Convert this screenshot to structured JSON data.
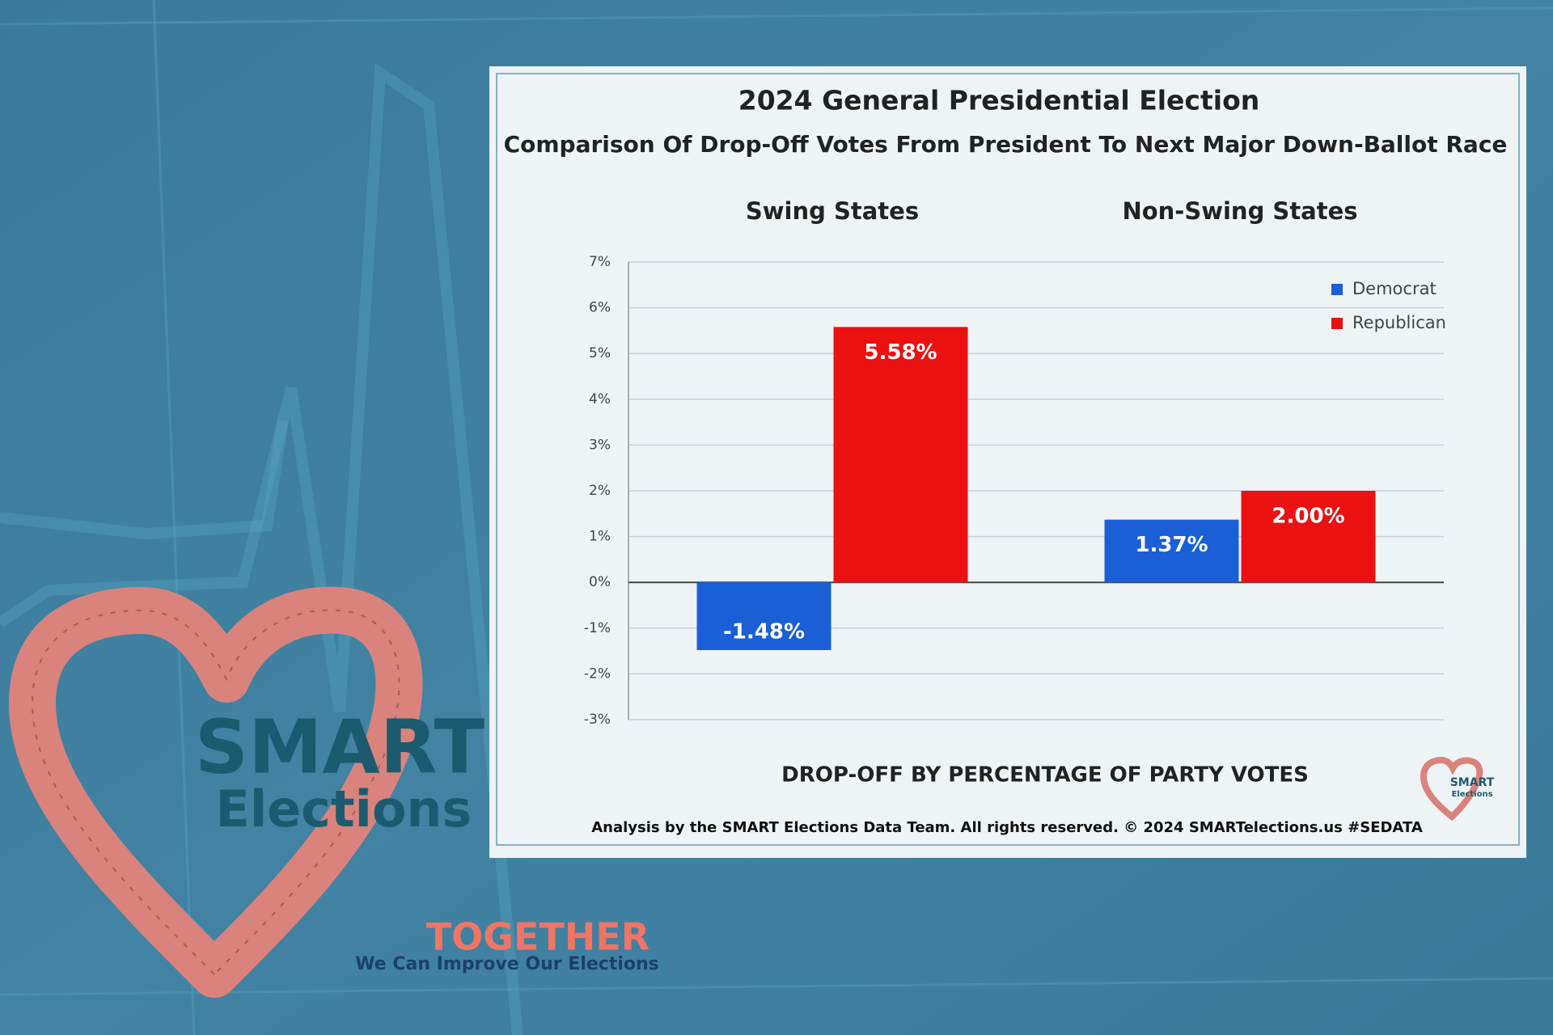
{
  "chart_data": {
    "type": "bar",
    "title": "2024 General Presidential Election",
    "subtitle": "Comparison Of Drop-Off Votes From President To Next Major Down-Ballot Race",
    "categories": [
      "Swing States",
      "Non-Swing States"
    ],
    "series": [
      {
        "name": "Democrat",
        "color": "#1a5fd6",
        "values": [
          -1.48,
          1.37
        ],
        "value_labels": [
          "-1.48%",
          "1.37%"
        ]
      },
      {
        "name": "Republican",
        "color": "#ec1111",
        "values": [
          5.58,
          2.0
        ],
        "value_labels": [
          "5.58%",
          "2.00%"
        ]
      }
    ],
    "ylim": [
      -3,
      7
    ],
    "yticks": [
      {
        "value": -3,
        "label": "-3%"
      },
      {
        "value": -2,
        "label": "-2%"
      },
      {
        "value": -1,
        "label": "-1%"
      },
      {
        "value": 0,
        "label": "0%"
      },
      {
        "value": 1,
        "label": "1%"
      },
      {
        "value": 2,
        "label": "2%"
      },
      {
        "value": 3,
        "label": "3%"
      },
      {
        "value": 4,
        "label": "4%"
      },
      {
        "value": 5,
        "label": "5%"
      },
      {
        "value": 6,
        "label": "6%"
      },
      {
        "value": 7,
        "label": "7%"
      }
    ],
    "grid": true,
    "legend": "top-right",
    "x_axis_label": "DROP-OFF BY PERCENTAGE OF PARTY VOTES",
    "footer": "Analysis by the SMART Elections Data Team. All rights reserved. © 2024 SMARTelections.us  #SEDATA"
  },
  "branding": {
    "logo_line1": "SMART",
    "logo_line2": "Elections",
    "tagline_title": "TOGETHER",
    "tagline": "We Can Improve Our Elections",
    "small_logo_line1": "SMART",
    "small_logo_line2": "Elections"
  }
}
